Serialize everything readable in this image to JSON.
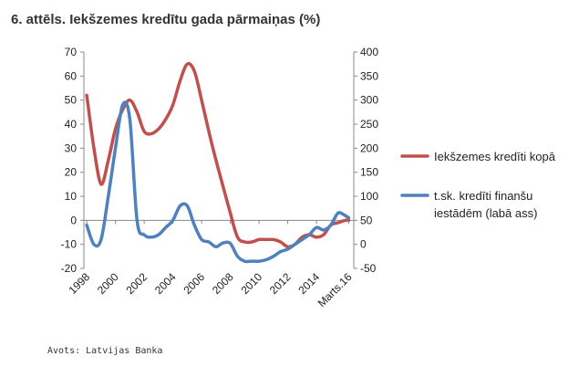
{
  "title": "6. attēls. Iekšzemes kredītu gada pārmaiņas (%)",
  "source": "Avots: Latvijas Banka",
  "chart_data": {
    "type": "line",
    "x_tick_labels": [
      "1998",
      "2000",
      "2002",
      "2004",
      "2006",
      "2008",
      "2010",
      "2012",
      "2014",
      "Marts.16"
    ],
    "y_left": {
      "ylim": [
        -20,
        70
      ],
      "ticks": [
        -20,
        -10,
        0,
        10,
        20,
        30,
        40,
        50,
        60,
        70
      ]
    },
    "y_right": {
      "ylim": [
        -50,
        400
      ],
      "ticks": [
        -50,
        0,
        50,
        100,
        150,
        200,
        250,
        300,
        350,
        400
      ]
    },
    "grid": false,
    "legend_position": "right",
    "series": [
      {
        "name": "Iekšzemes kredīti kopā",
        "axis": "left",
        "color": "#c0504d",
        "x": [
          1998.0,
          1998.5,
          1999.0,
          1999.5,
          2000.0,
          2000.5,
          2001.0,
          2001.5,
          2002.0,
          2002.5,
          2003.0,
          2003.5,
          2004.0,
          2004.5,
          2005.0,
          2005.5,
          2006.0,
          2006.5,
          2007.0,
          2007.5,
          2008.0,
          2008.5,
          2009.0,
          2009.5,
          2010.0,
          2010.5,
          2011.0,
          2011.5,
          2012.0,
          2012.5,
          2013.0,
          2013.5,
          2014.0,
          2014.5,
          2015.0,
          2015.5,
          2016.0,
          2016.25
        ],
        "y": [
          52,
          30,
          15,
          25,
          38,
          46,
          50,
          45,
          37,
          36,
          38,
          42,
          48,
          58,
          65,
          62,
          50,
          37,
          25,
          14,
          3,
          -7,
          -9,
          -9,
          -8,
          -8,
          -8,
          -9,
          -11,
          -10,
          -7,
          -6,
          -7,
          -6,
          -2,
          -1,
          0,
          0
        ]
      },
      {
        "name": "t.sk. kredīti finanšu iestādēm (labā ass)",
        "axis": "right",
        "color": "#4f81bd",
        "x": [
          1998.0,
          1998.5,
          1999.0,
          1999.5,
          2000.0,
          2000.5,
          2001.0,
          2001.5,
          2002.0,
          2002.5,
          2003.0,
          2003.5,
          2004.0,
          2004.5,
          2005.0,
          2005.5,
          2006.0,
          2006.5,
          2007.0,
          2007.5,
          2008.0,
          2008.5,
          2009.0,
          2009.5,
          2010.0,
          2010.5,
          2011.0,
          2011.5,
          2012.0,
          2012.5,
          2013.0,
          2013.5,
          2014.0,
          2014.5,
          2015.0,
          2015.5,
          2016.0,
          2016.25
        ],
        "y": [
          40,
          0,
          10,
          100,
          200,
          290,
          260,
          50,
          20,
          15,
          20,
          35,
          50,
          80,
          80,
          40,
          10,
          5,
          -5,
          3,
          2,
          -25,
          -35,
          -35,
          -35,
          -32,
          -25,
          -15,
          -10,
          0,
          10,
          20,
          35,
          30,
          40,
          65,
          60,
          55
        ]
      }
    ]
  }
}
